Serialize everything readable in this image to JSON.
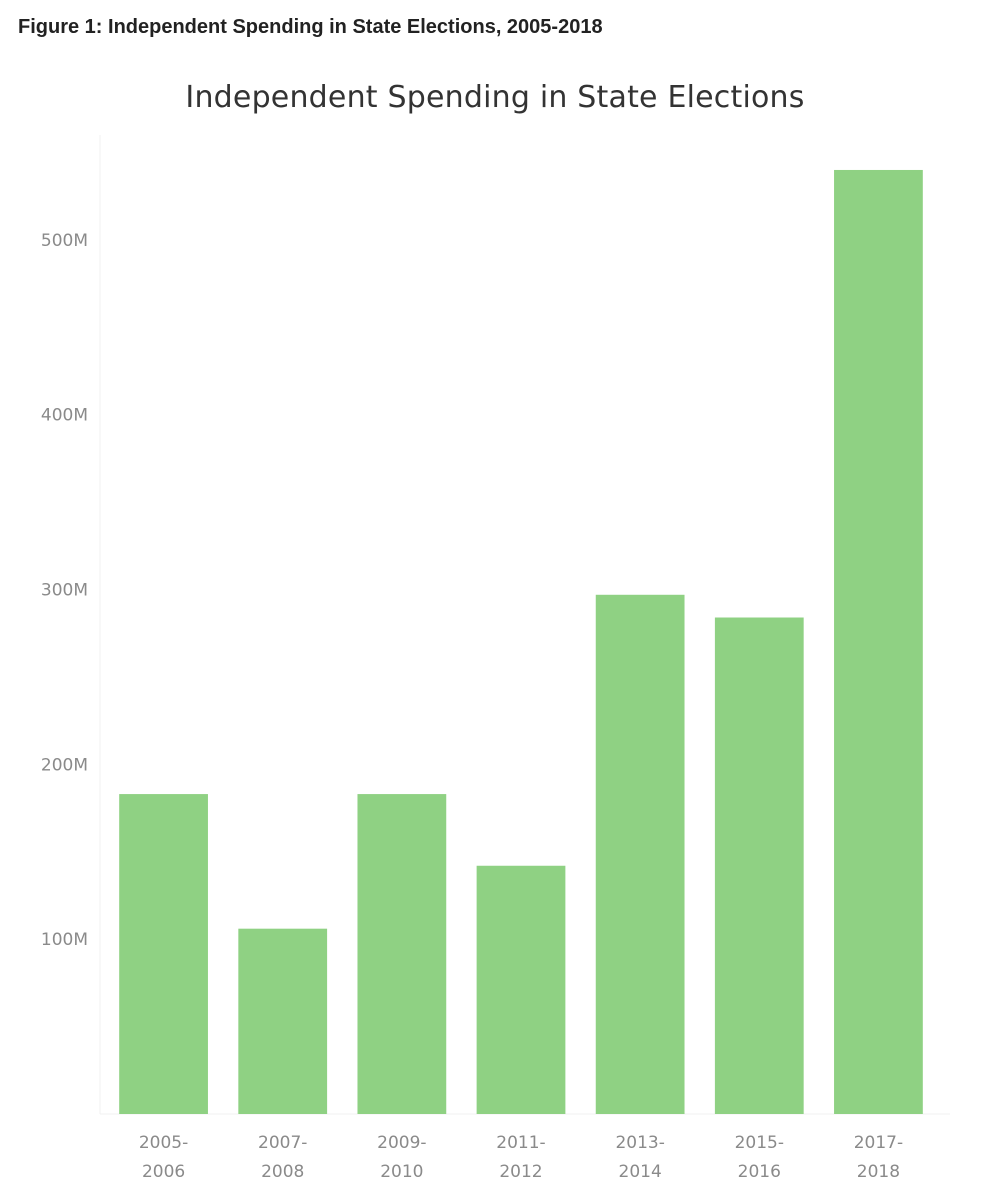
{
  "figure_caption": "Figure 1: Independent Spending in State Elections, 2005-2018",
  "chart_data": {
    "type": "bar",
    "title": "Independent Spending in State Elections",
    "xlabel": "",
    "ylabel": "",
    "categories": [
      [
        "2005-",
        "2006"
      ],
      [
        "2007-",
        "2008"
      ],
      [
        "2009-",
        "2010"
      ],
      [
        "2011-",
        "2012"
      ],
      [
        "2013-",
        "2014"
      ],
      [
        "2015-",
        "2016"
      ],
      [
        "2017-",
        "2018"
      ]
    ],
    "values": [
      183000000,
      106000000,
      183000000,
      142000000,
      297000000,
      284000000,
      540000000
    ],
    "ylim": [
      0,
      560000000
    ],
    "yticks": [
      100000000,
      200000000,
      300000000,
      400000000,
      500000000
    ],
    "ytick_labels": [
      "100M",
      "200M",
      "300M",
      "400M",
      "500M"
    ],
    "bar_color": "#8fd183",
    "grid": false,
    "legend": "none"
  }
}
